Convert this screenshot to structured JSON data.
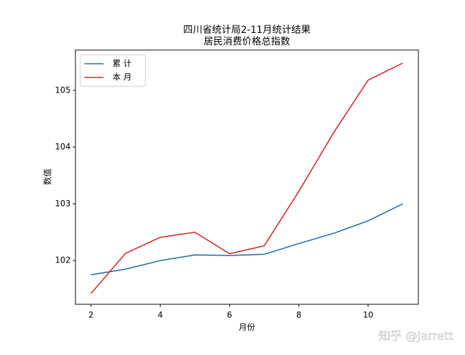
{
  "chart_data": {
    "type": "line",
    "title": [
      "四川省统计局2-11月统计结果",
      "居民消费价格总指数"
    ],
    "xlabel": "月份",
    "ylabel": "数值",
    "x": [
      2,
      3,
      4,
      5,
      6,
      7,
      8,
      9,
      10,
      11
    ],
    "series": [
      {
        "name": "累 计",
        "color": "#1f6fb4",
        "values": [
          101.75,
          101.85,
          102.0,
          102.1,
          102.09,
          102.11,
          102.3,
          102.48,
          102.7,
          103.0
        ]
      },
      {
        "name": "本 月",
        "color": "#d62728",
        "values": [
          101.42,
          102.13,
          102.41,
          102.5,
          102.12,
          102.26,
          103.22,
          104.25,
          105.18,
          105.48
        ]
      }
    ],
    "xlim": [
      1.55,
      11.45
    ],
    "ylim": [
      101.23,
      105.71
    ],
    "xticks": [
      2,
      4,
      6,
      8,
      10
    ],
    "yticks": [
      102,
      103,
      104,
      105
    ],
    "legend": "upper-left",
    "watermark": "知乎 @Jarrett"
  }
}
